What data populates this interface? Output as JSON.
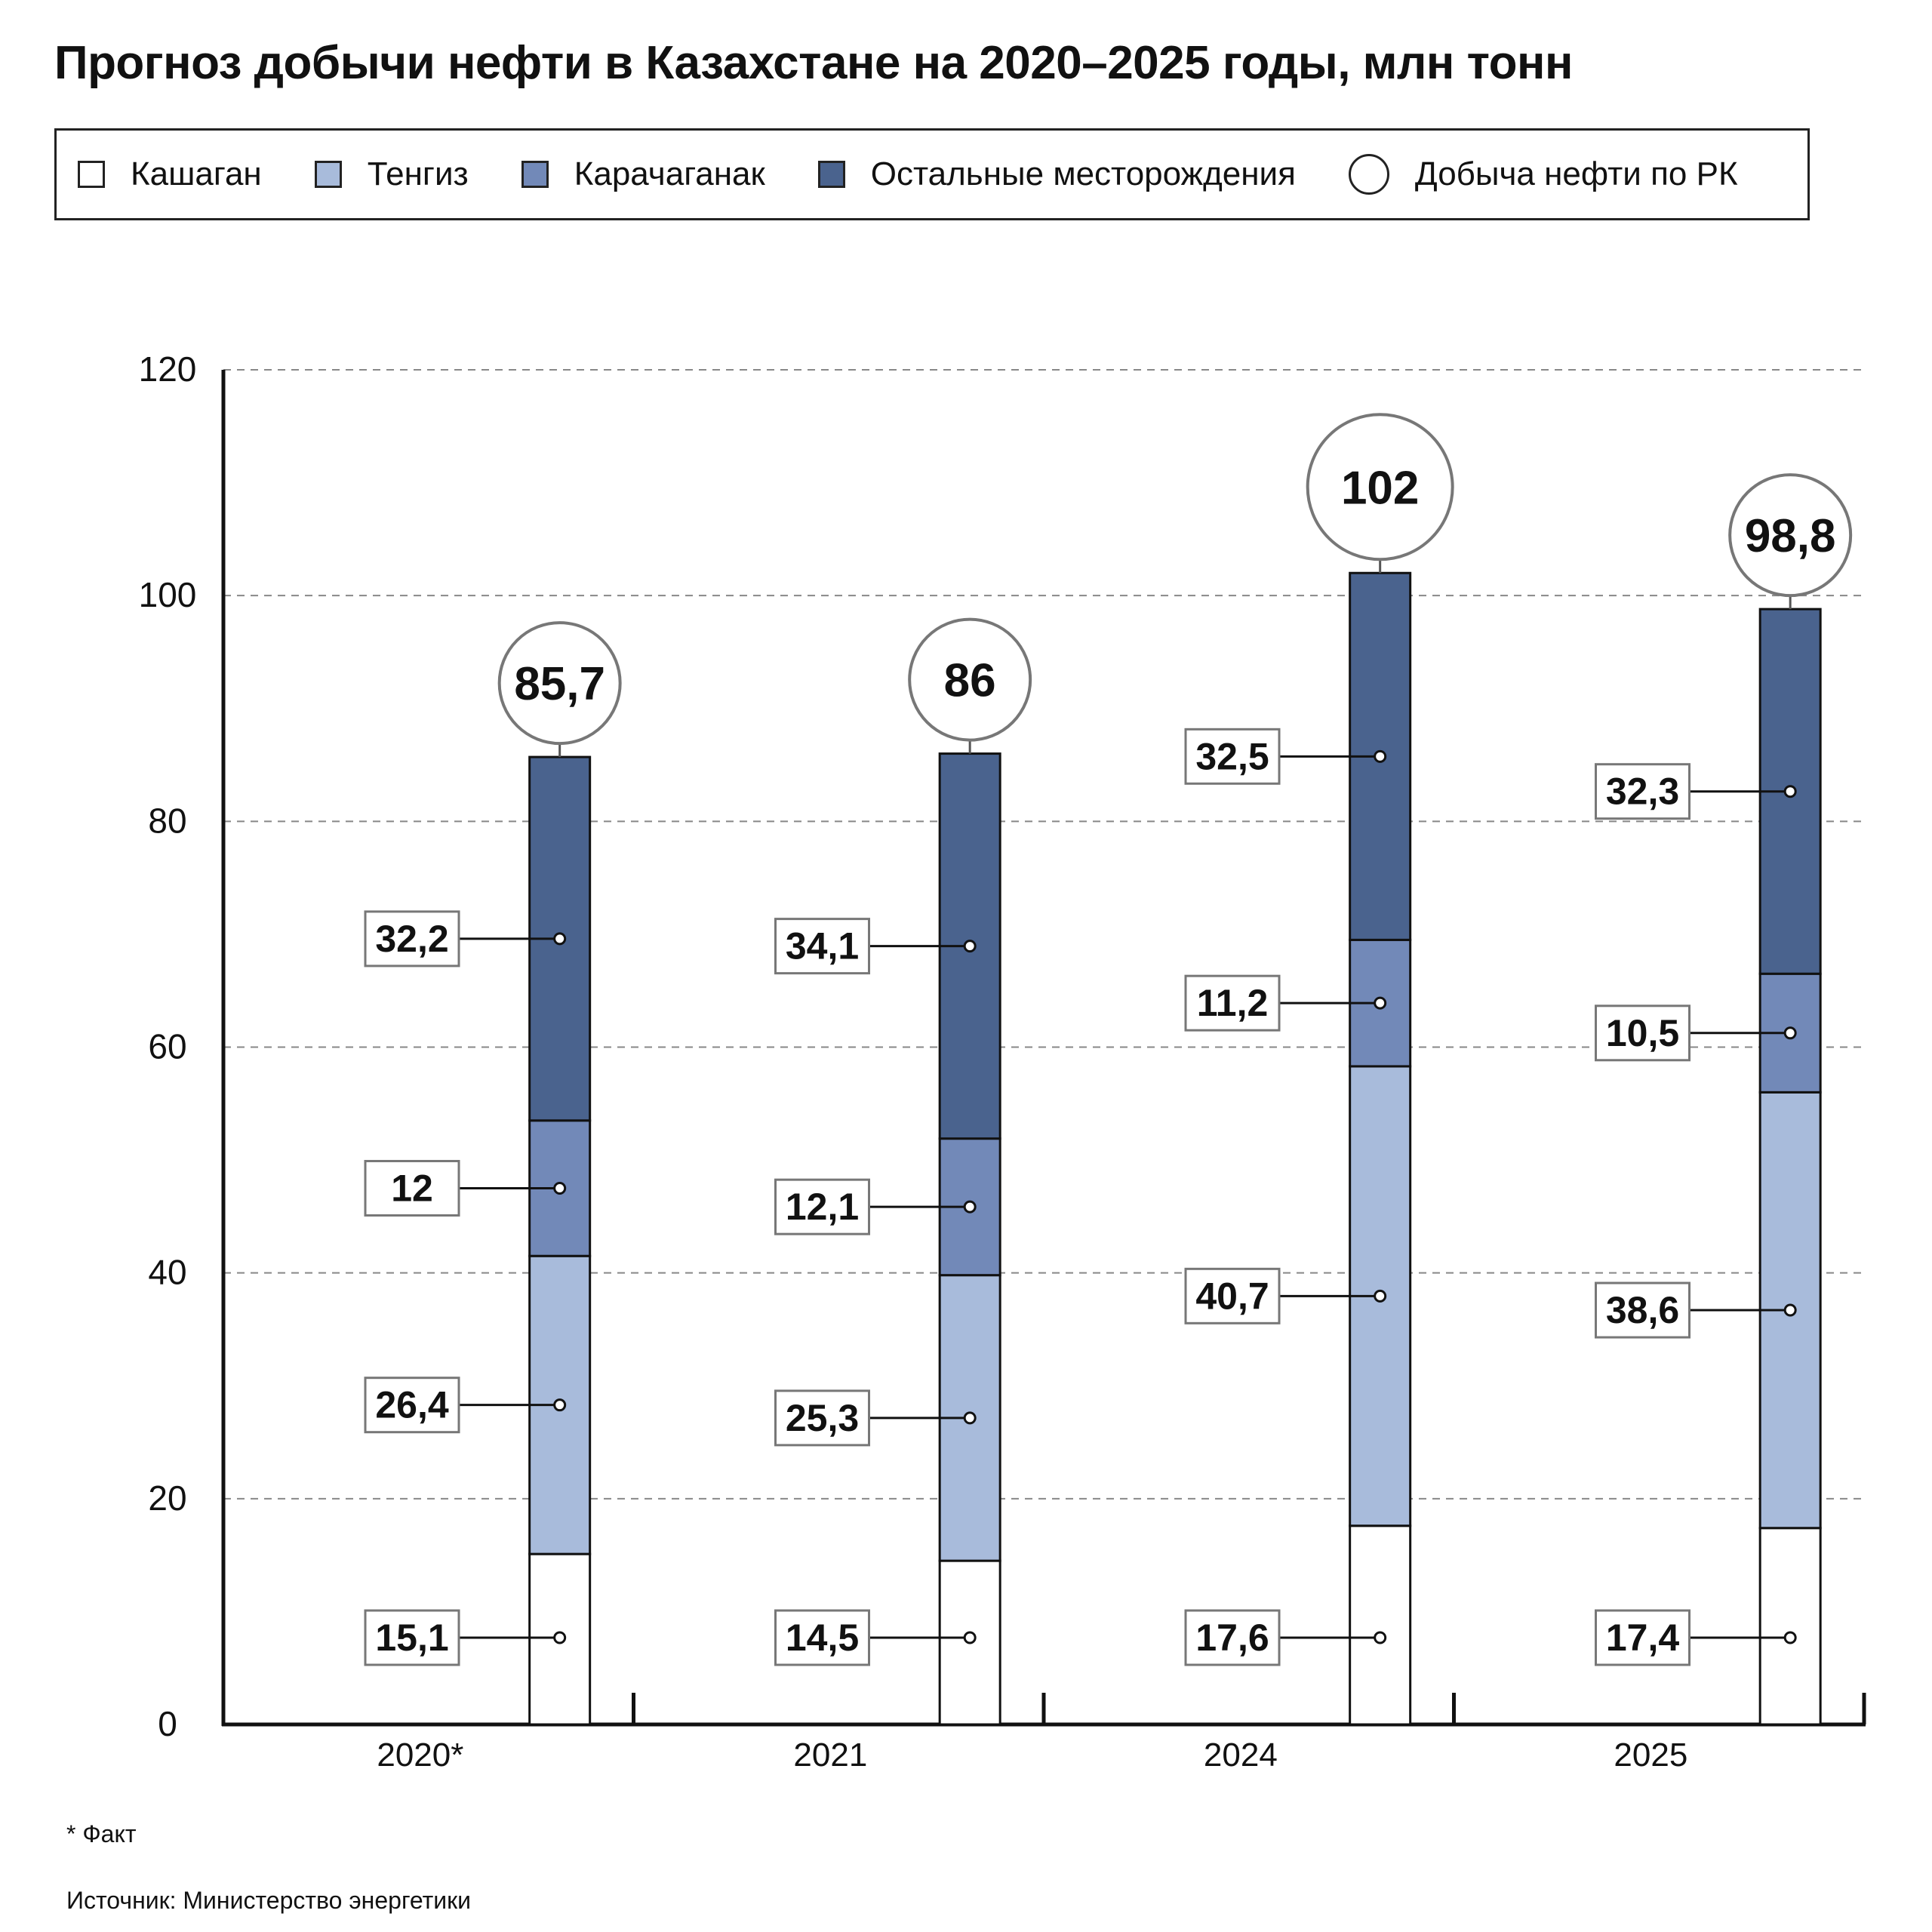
{
  "title": "Прогноз добычи нефти в Казахстане на 2020–2025 годы, млн тонн",
  "legend": {
    "items": [
      {
        "label": "Кашаган",
        "color": "#ffffff",
        "shape": "square"
      },
      {
        "label": "Тенгиз",
        "color": "#a8bbdb",
        "shape": "square"
      },
      {
        "label": "Карачаганак",
        "color": "#7289b8",
        "shape": "square"
      },
      {
        "label": "Остальные месторождения",
        "color": "#4a638e",
        "shape": "square"
      },
      {
        "label": "Добыча нефти по РК",
        "color": "#ffffff",
        "shape": "circle"
      }
    ]
  },
  "chart_data": {
    "type": "bar",
    "stacked": true,
    "title": "Прогноз добычи нефти в Казахстане на 2020–2025 годы, млн тонн",
    "categories": [
      "2020*",
      "2021",
      "2024",
      "2025"
    ],
    "series": [
      {
        "name": "Кашаган",
        "color": "#ffffff",
        "values": [
          15.1,
          14.5,
          17.6,
          17.4
        ],
        "labels": [
          "15,1",
          "14,5",
          "17,6",
          "17,4"
        ]
      },
      {
        "name": "Тенгиз",
        "color": "#a8bbdb",
        "values": [
          26.4,
          25.3,
          40.7,
          38.6
        ],
        "labels": [
          "26,4",
          "25,3",
          "40,7",
          "38,6"
        ]
      },
      {
        "name": "Карачаганак",
        "color": "#7289b8",
        "values": [
          12,
          12.1,
          11.2,
          10.5
        ],
        "labels": [
          "12",
          "12,1",
          "11,2",
          "10,5"
        ]
      },
      {
        "name": "Остальные месторождения",
        "color": "#4a638e",
        "values": [
          32.2,
          34.1,
          32.5,
          32.3
        ],
        "labels": [
          "32,2",
          "34,1",
          "32,5",
          "32,3"
        ]
      }
    ],
    "totals": {
      "name": "Добыча нефти по РК",
      "values": [
        85.7,
        86,
        102,
        98.8
      ],
      "labels": [
        "85,7",
        "86",
        "102",
        "98,8"
      ]
    },
    "ylim": [
      0,
      120
    ],
    "yticks": [
      0,
      20,
      40,
      60,
      80,
      100,
      120
    ],
    "grid": true,
    "legend_position": "top",
    "xlabel": "",
    "ylabel": ""
  },
  "footnote": "* Факт",
  "source": "Источник: Министерство энергетики"
}
